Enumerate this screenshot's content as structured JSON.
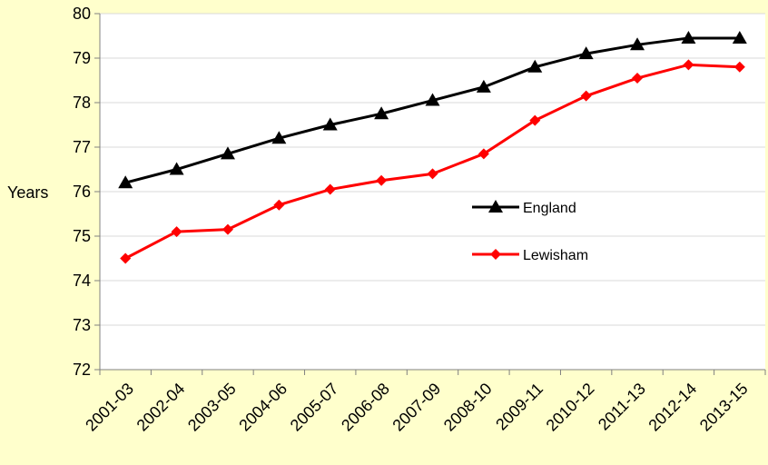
{
  "chart_data": {
    "type": "line",
    "title": "",
    "ylabel": "Years",
    "xlabel": "",
    "ylim": [
      72,
      80
    ],
    "yticks": [
      72,
      73,
      74,
      75,
      76,
      77,
      78,
      79,
      80
    ],
    "grid": true,
    "legend_position": "center-right",
    "categories": [
      "2001-03",
      "2002-04",
      "2003-05",
      "2004-06",
      "2005-07",
      "2006-08",
      "2007-09",
      "2008-10",
      "2009-11",
      "2010-12",
      "2011-13",
      "2012-14",
      "2013-15"
    ],
    "series": [
      {
        "name": "England",
        "color": "#000000",
        "marker": "triangle",
        "values": [
          76.2,
          76.5,
          76.85,
          77.2,
          77.5,
          77.75,
          78.05,
          78.35,
          78.8,
          79.1,
          79.3,
          79.45,
          79.45
        ]
      },
      {
        "name": "Lewisham",
        "color": "#ff0000",
        "marker": "diamond",
        "values": [
          74.5,
          75.1,
          75.15,
          75.7,
          76.05,
          76.25,
          76.4,
          76.85,
          77.6,
          78.15,
          78.55,
          78.85,
          78.8
        ]
      }
    ]
  }
}
